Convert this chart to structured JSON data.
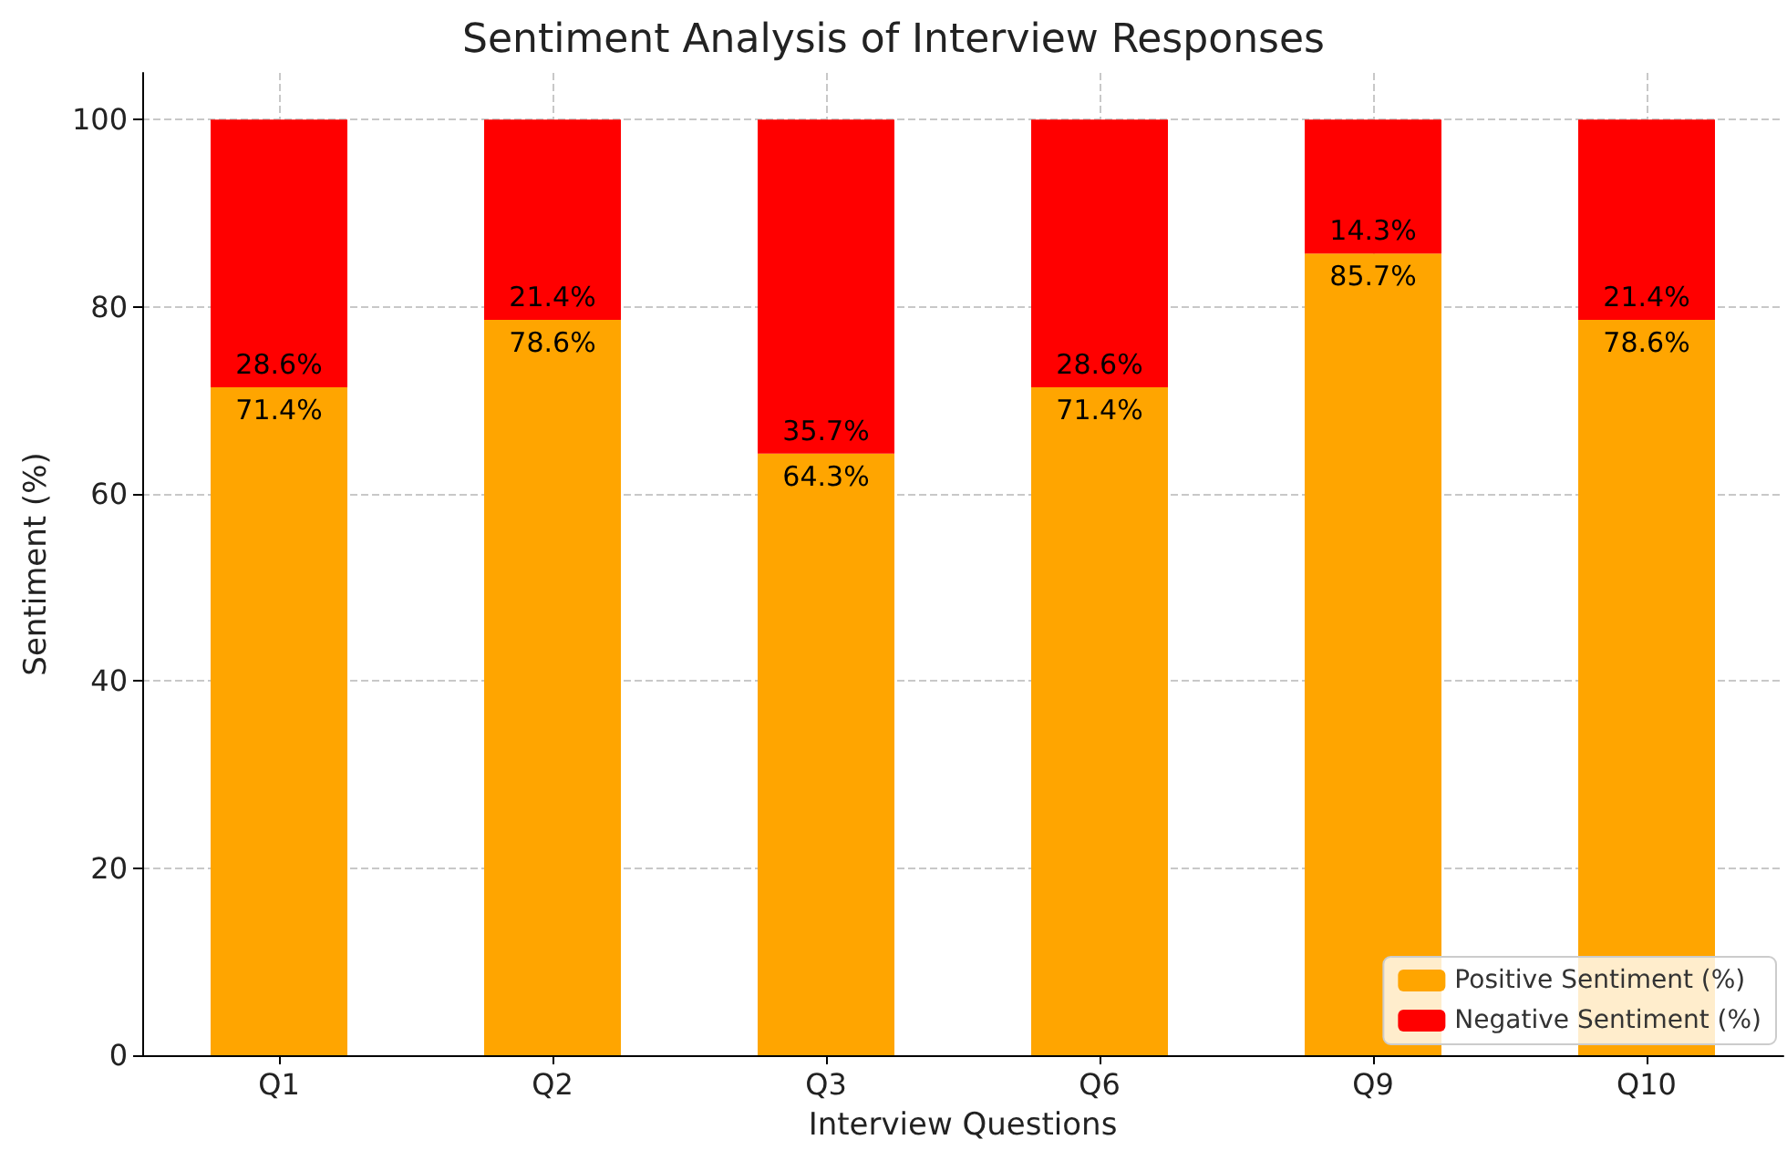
{
  "chart_data": {
    "type": "bar",
    "title": "Sentiment Analysis of Interview Responses",
    "xlabel": "Interview Questions",
    "ylabel": "Sentiment (%)",
    "categories": [
      "Q1",
      "Q2",
      "Q3",
      "Q6",
      "Q9",
      "Q10"
    ],
    "stacked": true,
    "series": [
      {
        "name": "Positive Sentiment (%)",
        "color": "#ffa500",
        "values": [
          71.4,
          78.6,
          64.3,
          71.4,
          85.7,
          78.6
        ],
        "value_labels": [
          "71.4%",
          "78.6%",
          "64.3%",
          "71.4%",
          "85.7%",
          "78.6%"
        ]
      },
      {
        "name": "Negative Sentiment (%)",
        "color": "#ff0000",
        "values": [
          28.6,
          21.4,
          35.7,
          28.6,
          14.3,
          21.4
        ],
        "value_labels": [
          "28.6%",
          "21.4%",
          "35.7%",
          "28.6%",
          "14.3%",
          "21.4%"
        ]
      }
    ],
    "ylim": [
      0,
      105
    ],
    "yticks": [
      0,
      20,
      40,
      60,
      80,
      100
    ],
    "grid": true,
    "legend": "bottom right"
  }
}
